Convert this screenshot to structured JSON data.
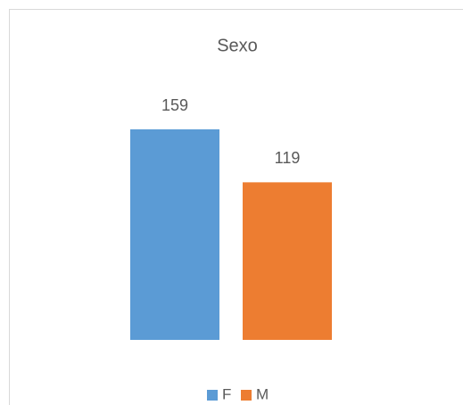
{
  "chart_data": {
    "type": "bar",
    "title": "Sexo",
    "series": [
      {
        "name": "F",
        "color": "#5b9bd5",
        "values": [
          159
        ]
      },
      {
        "name": "M",
        "color": "#ed7d31",
        "values": [
          119
        ]
      }
    ],
    "legend": "bottom"
  }
}
